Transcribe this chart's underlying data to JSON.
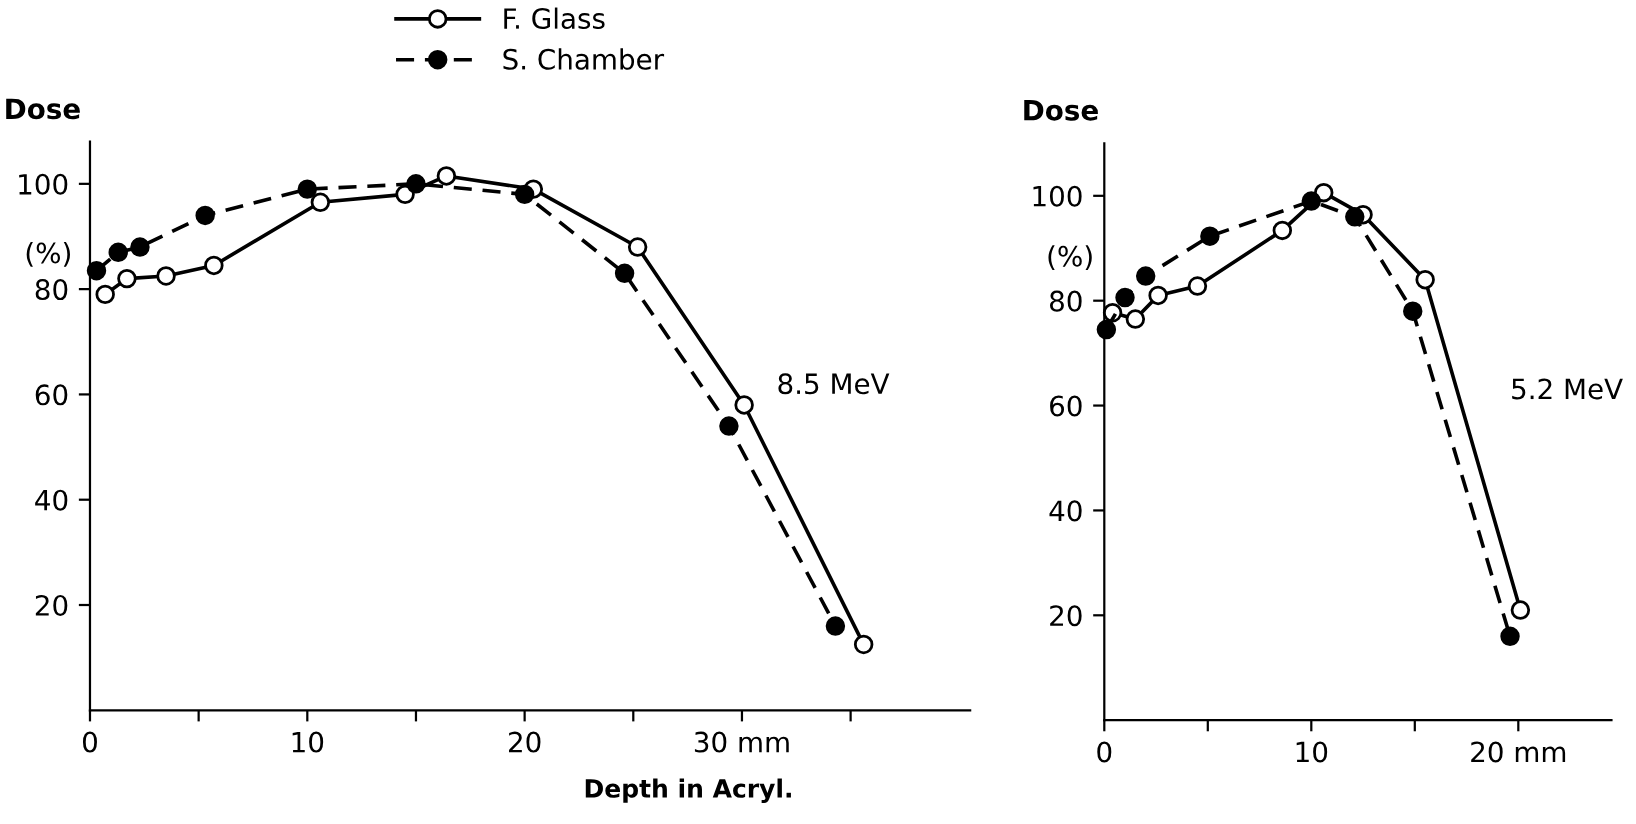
{
  "chart_data": [
    {
      "type": "line",
      "ylabel": "Dose",
      "xlabel": "Depth in Acryl.",
      "xlim": [
        0,
        40.5
      ],
      "ylim": [
        0,
        108
      ],
      "xticks": [
        0,
        {
          "value": 5,
          "label": null
        },
        10,
        {
          "value": 15,
          "label": null
        },
        20,
        {
          "value": 25,
          "label": null
        },
        {
          "value": 30,
          "label": "30 mm"
        },
        {
          "value": 35,
          "label": null
        }
      ],
      "yticks": [
        20,
        40,
        60,
        80,
        100
      ],
      "legend": "top",
      "grid": false,
      "annotations": [
        "(%)",
        "8.5 MeV"
      ],
      "series": [
        {
          "name": "F. Glass",
          "color": "#000000",
          "marker": "circle",
          "line_style": "solid",
          "x": [
            0.7,
            1.7,
            3.5,
            5.7,
            10.6,
            14.5,
            16.4,
            20.4,
            25.2,
            30.1,
            35.6
          ],
          "values": [
            79,
            82,
            82.5,
            84.5,
            96.5,
            98,
            101.5,
            99,
            88,
            58,
            12.5
          ]
        },
        {
          "name": "S. Chamber",
          "color": "#000000",
          "marker": "circle",
          "line_style": "dashed",
          "x": [
            0.3,
            1.3,
            2.3,
            5.3,
            10,
            15,
            20,
            24.6,
            29.4,
            34.3
          ],
          "values": [
            83.5,
            87,
            88,
            94,
            99,
            100,
            98,
            83,
            54,
            16
          ]
        }
      ]
    },
    {
      "type": "line",
      "ylabel": "Dose",
      "xlim": [
        0,
        24.5
      ],
      "ylim": [
        0,
        110
      ],
      "xticks": [
        0,
        {
          "value": 5,
          "label": null
        },
        10,
        {
          "value": 15,
          "label": null
        },
        {
          "value": 20,
          "label": "20 mm"
        }
      ],
      "yticks": [
        20,
        40,
        60,
        80,
        100
      ],
      "grid": false,
      "annotations": [
        "(%)",
        "5.2 MeV"
      ],
      "series": [
        {
          "color": "#000000",
          "marker": "circle",
          "line_style": "solid",
          "x": [
            0.4,
            1.5,
            2.6,
            4.5,
            8.6,
            10.6,
            12.5,
            15.5,
            20.1
          ],
          "values": [
            77.7,
            76.5,
            81,
            82.8,
            93.4,
            100.6,
            96.4,
            84,
            21
          ]
        },
        {
          "color": "#000000",
          "marker": "circle",
          "line_style": "dashed",
          "x": [
            0.1,
            1,
            2,
            5.1,
            10,
            12.1,
            14.9,
            19.6
          ],
          "values": [
            74.5,
            80.6,
            84.7,
            92.3,
            99,
            96,
            78,
            16
          ]
        }
      ]
    }
  ]
}
